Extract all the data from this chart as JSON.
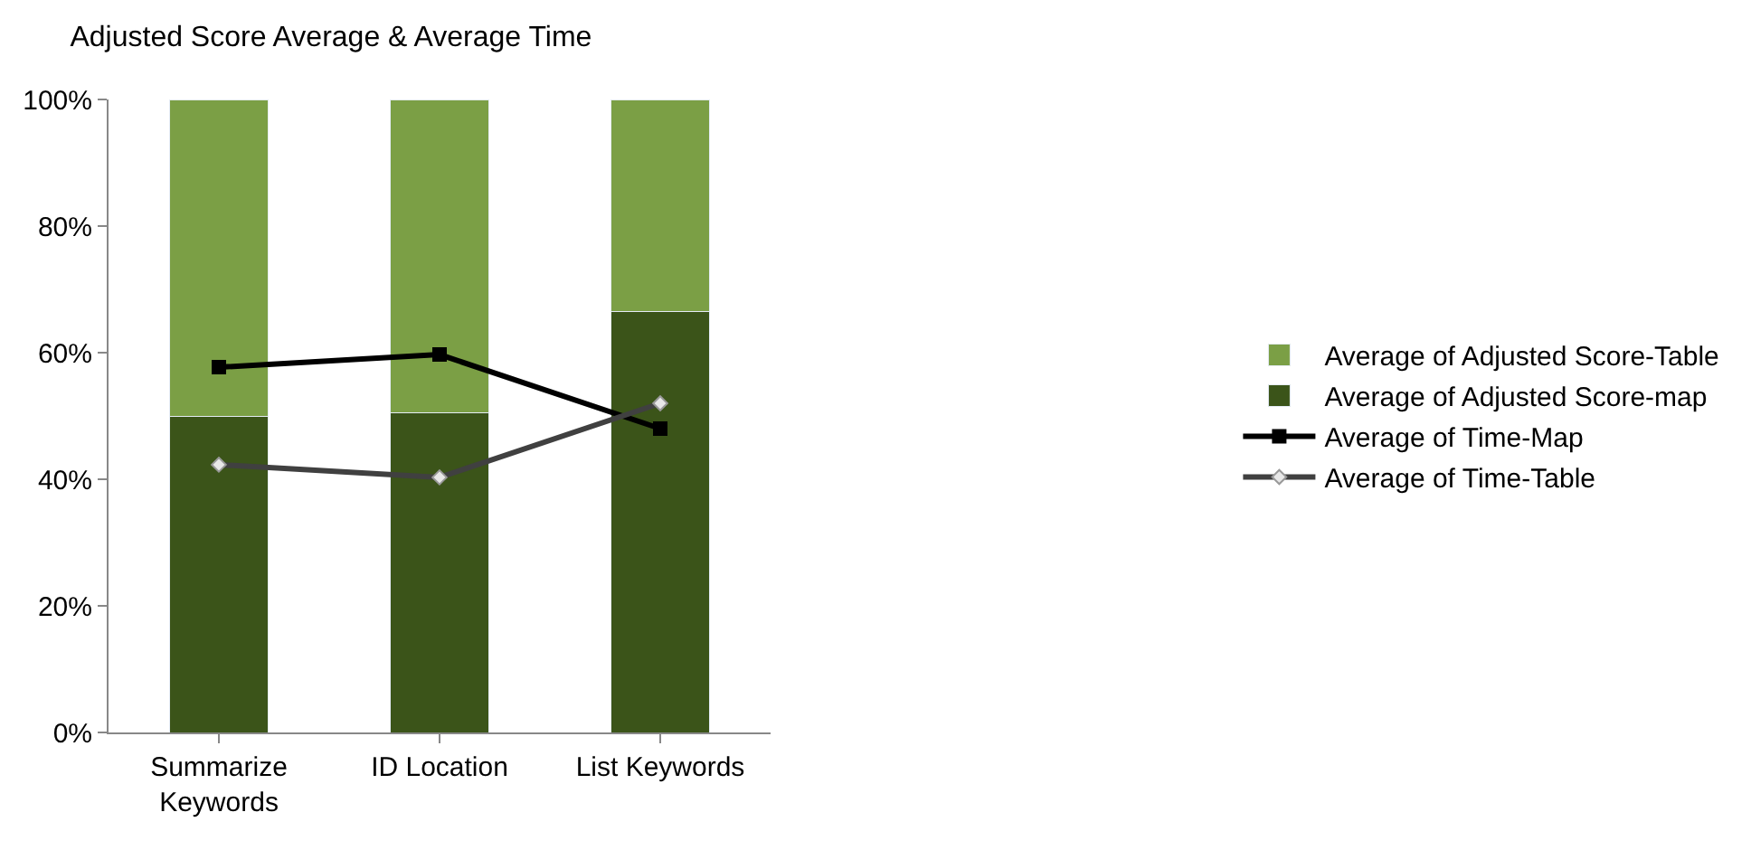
{
  "chart_data": {
    "type": "bar",
    "title": "Adjusted Score Average & Average Time",
    "categories": [
      "Summarize Keywords",
      "ID Location",
      "List Keywords"
    ],
    "stacked": true,
    "series": [
      {
        "name": "Average of Adjusted Score-map",
        "color": "#3b5419",
        "values": [
          50,
          50.5,
          66.5
        ]
      },
      {
        "name": "Average of Adjusted Score-Table",
        "color": "#7b9f45",
        "values": [
          50,
          49.5,
          33.5
        ]
      },
      {
        "name": "Average of Time-Map",
        "type": "line",
        "color": "#000000",
        "marker": "square",
        "values": [
          57.7,
          59.7,
          48
        ]
      },
      {
        "name": "Average of Time-Table",
        "type": "line",
        "color": "#404040",
        "marker": "diamond",
        "values": [
          42.3,
          40.3,
          52
        ]
      }
    ],
    "ylim": [
      0,
      100
    ],
    "yticks": [
      {
        "value": 0,
        "label": "0%"
      },
      {
        "value": 20,
        "label": "20%"
      },
      {
        "value": 40,
        "label": "40%"
      },
      {
        "value": 60,
        "label": "60%"
      },
      {
        "value": 80,
        "label": "80%"
      },
      {
        "value": 100,
        "label": "100%"
      }
    ],
    "legend": "right"
  }
}
